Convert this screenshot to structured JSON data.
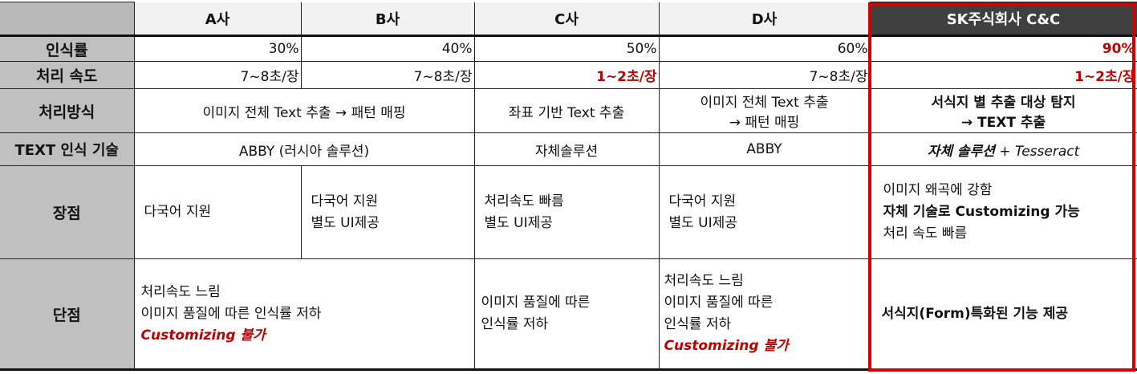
{
  "headers": {
    "a": "A사",
    "b": "B사",
    "c": "C사",
    "d": "D사",
    "sk": "SK주식회사 C&C"
  },
  "rows": {
    "recognition": {
      "label": "인식률",
      "a": "30%",
      "b": "40%",
      "c": "50%",
      "d": "60%",
      "sk": "90%"
    },
    "speed": {
      "label": "처리 속도",
      "a": "7~8초/장",
      "b": "7~8초/장",
      "c": "1~2초/장",
      "d": "7~8초/장",
      "sk": "1~2초/장"
    },
    "method": {
      "label": "처리방식",
      "ab": "이미지 전체 Text 추출 → 패턴 매핑",
      "c": "좌표 기반 Text 추출",
      "d_line1": "이미지 전체 Text 추출",
      "d_line2": "→ 패턴 매핑",
      "sk_line1": "서식지 별 추출 대상 탐지",
      "sk_line2": "→ TEXT 추출"
    },
    "tech": {
      "label": "TEXT 인식 기술",
      "ab": "ABBY (러시아 솔루션)",
      "c": "자체솔루션",
      "d": "ABBY",
      "sk_bold": "자체 솔루션",
      "sk_rest": " + Tesseract"
    },
    "pros": {
      "label": "장점",
      "a": "다국어 지원",
      "b_line1": "다국어 지원",
      "b_line2": "별도 UI제공",
      "c_line1": "처리속도 빠름",
      "c_line2": "별도 UI제공",
      "d_line1": "다국어 지원",
      "d_line2": "별도 UI제공",
      "sk_line1": "이미지 왜곡에 강함",
      "sk_line2": "자체 기술로 Customizing 가능",
      "sk_line3": "처리 속도 빠름"
    },
    "cons": {
      "label": "단점",
      "ab_line1": "처리속도 느림",
      "ab_line2": "이미지 품질에 따른 인식률 저하",
      "ab_line3": "Customizing 불가",
      "c_line1": "이미지 품질에 따른",
      "c_line2": "인식률 저하",
      "d_line1": "처리속도 느림",
      "d_line2": "이미지 품질에 따른",
      "d_line3": "인식률 저하",
      "d_line4": "Customizing 불가",
      "sk": "서식지(Form)특화된 기능 제공"
    }
  },
  "colors": {
    "highlight": "#d40000",
    "accent_text": "#c00000",
    "sk_header_bg": "#3f3f3f",
    "row_header_bg": "#c0c0c0"
  }
}
